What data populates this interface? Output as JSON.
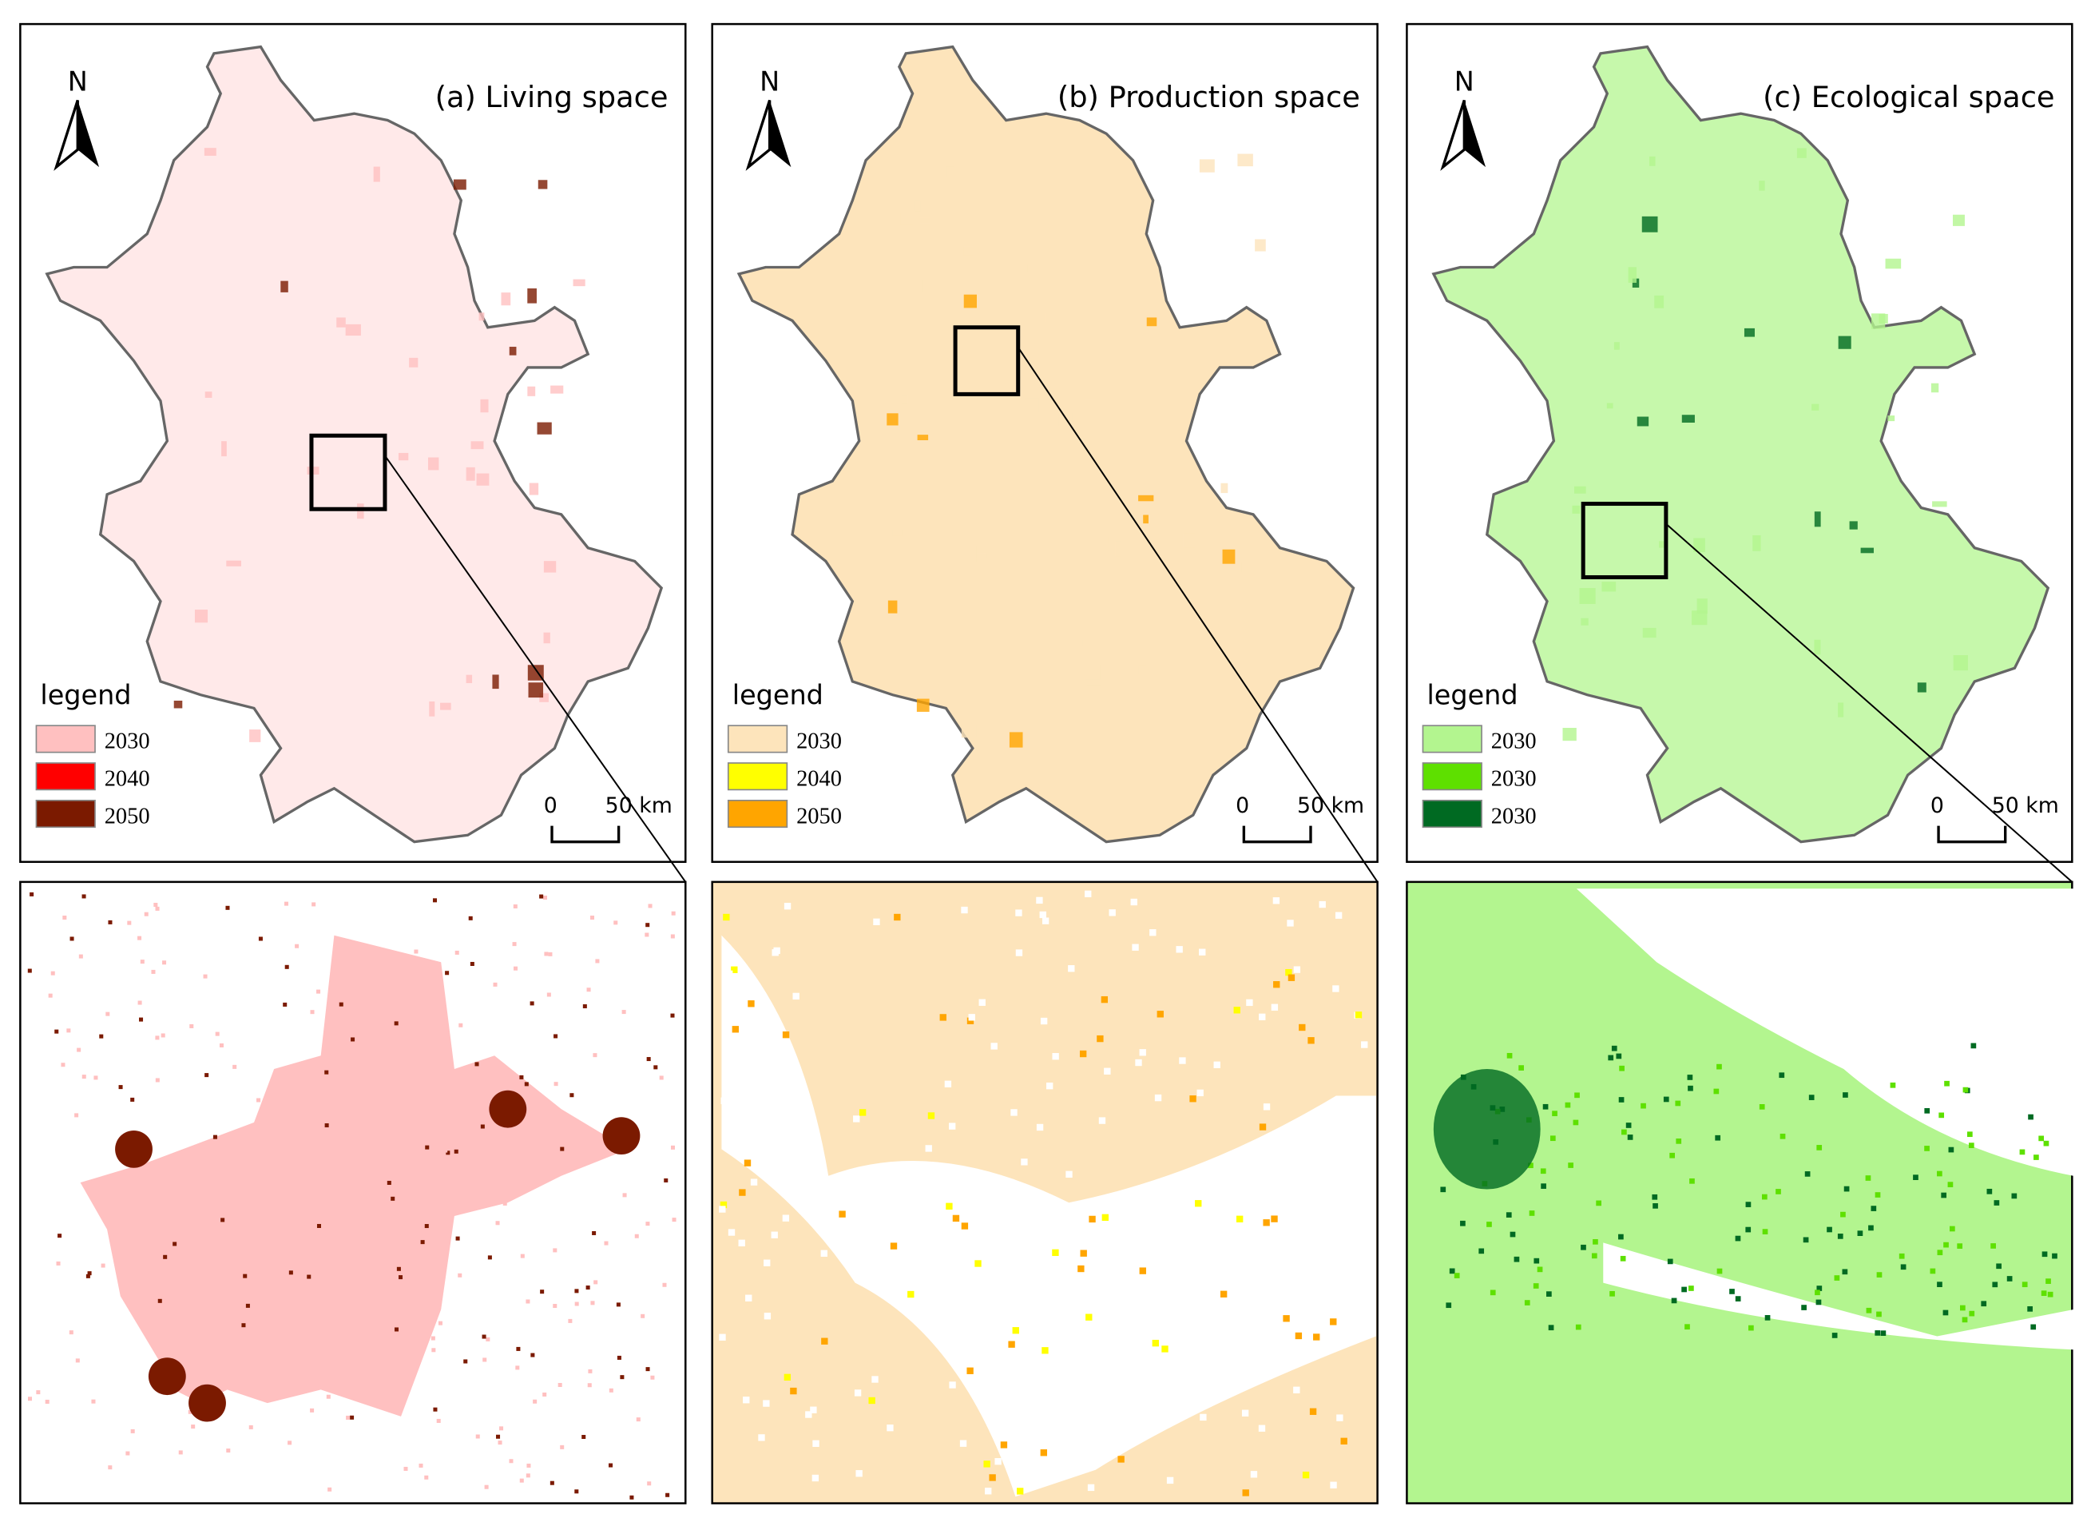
{
  "panels": [
    {
      "title": "(a)  Living space",
      "north": "N",
      "legend": {
        "title": "legend",
        "items": [
          {
            "label": "2030",
            "color": "#ffc0c0"
          },
          {
            "label": "2040",
            "color": "#ff0000"
          },
          {
            "label": "2050",
            "color": "#7b1a00"
          }
        ]
      },
      "scale": {
        "start": "0",
        "end": "50 km"
      }
    },
    {
      "title": "(b) Production space",
      "north": "N",
      "legend": {
        "title": "legend",
        "items": [
          {
            "label": "2030",
            "color": "#fde4bb"
          },
          {
            "label": "2040",
            "color": "#ffff00"
          },
          {
            "label": "2050",
            "color": "#ffa500"
          }
        ]
      },
      "scale": {
        "start": "0",
        "end": "50 km"
      }
    },
    {
      "title": "(c)  Ecological space",
      "north": "N",
      "legend": {
        "title": "legend",
        "items": [
          {
            "label": "2030",
            "color": "#b3f58f"
          },
          {
            "label": "2030",
            "color": "#5ee000"
          },
          {
            "label": "2030",
            "color": "#006a22"
          }
        ]
      },
      "scale": {
        "start": "0",
        "end": "50 km"
      }
    }
  ]
}
